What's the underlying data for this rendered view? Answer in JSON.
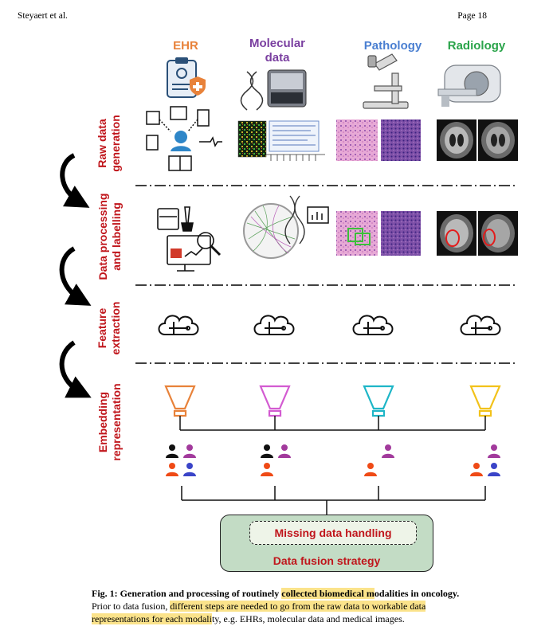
{
  "header": {
    "left": "Steyaert et al.",
    "right": "Page 18"
  },
  "columns": {
    "ehr": "EHR",
    "molecular": "Molecular data",
    "pathology": "Pathology",
    "radiology": "Radiology"
  },
  "rows": {
    "raw": "Raw data generation",
    "processing": "Data processing and labelling",
    "feature": "Feature extraction",
    "embedding": "Embedding representation"
  },
  "fusion": {
    "missing": "Missing data handling",
    "strategy": "Data fusion strategy"
  },
  "colors": {
    "ehr": "#e8823a",
    "molecular": "#d35bd1",
    "pathology": "#1eb6c7",
    "radiology": "#f2c21a",
    "label_red": "#c0161c",
    "fusion_green": "#c3dcc5"
  },
  "caption": {
    "fig": "Fig. 1:",
    "title_a": "Generation and processing of routinely ",
    "title_hl": "collected biomedical m",
    "title_b": "odalities in oncology.",
    "body_a": "Prior to data fusion, ",
    "body_hl1": "different steps are needed to go from the raw data to workable data",
    "body_hl2": "representations for each modali",
    "body_b": "ty, e.g. EHRs, molecular data and medical images."
  }
}
